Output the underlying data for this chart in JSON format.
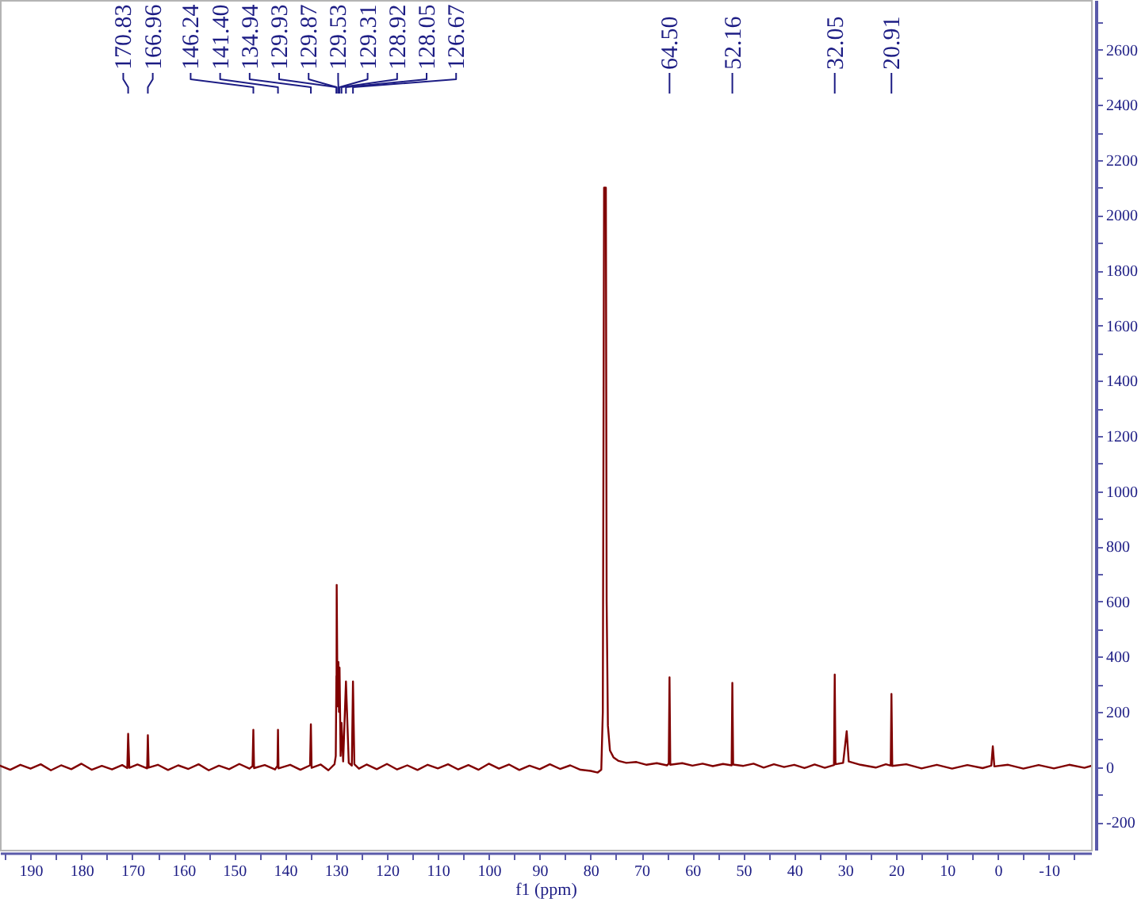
{
  "chart_data": {
    "type": "line",
    "xlabel": "f1 (ppm)",
    "x": [
      196,
      194,
      192,
      190,
      188,
      186,
      184,
      182,
      180,
      178,
      176,
      174,
      172,
      171.0,
      170.83,
      170.6,
      169,
      167.1,
      166.96,
      166.8,
      165,
      163,
      161,
      159,
      157,
      155,
      153,
      151,
      149,
      147,
      146.4,
      146.24,
      146.1,
      144,
      142,
      141.5,
      141.4,
      141.3,
      139,
      137,
      135.1,
      134.94,
      134.8,
      133,
      131.5,
      130.3,
      130.05,
      129.93,
      129.9,
      129.87,
      129.7,
      129.53,
      129.42,
      129.31,
      129.1,
      128.92,
      128.6,
      128.05,
      127.5,
      126.9,
      126.67,
      126.4,
      125.5,
      124,
      122,
      120,
      118,
      116,
      114,
      112,
      110,
      108,
      106,
      104,
      102,
      100,
      98,
      96,
      94,
      92,
      90,
      88,
      86,
      84,
      82,
      80,
      78.6,
      77.9,
      77.6,
      77.35,
      77.0,
      76.85,
      76.6,
      76.2,
      75.5,
      74.5,
      73,
      71,
      69,
      67,
      65,
      64.65,
      64.5,
      64.35,
      62,
      60,
      58,
      56,
      54,
      52.3,
      52.16,
      52.0,
      50,
      48,
      46,
      44,
      42,
      40,
      38,
      36,
      34,
      32.2,
      32.05,
      31.9,
      30.4,
      29.7,
      29.3,
      27,
      24,
      22,
      21.05,
      20.91,
      20.75,
      18,
      15,
      12,
      9,
      6,
      3,
      1.3,
      1.0,
      0.7,
      -2,
      -5,
      -8,
      -11,
      -14,
      -17,
      -18.3
    ],
    "series": [
      {
        "color": "#800000",
        "axis": "y2",
        "values": [
          5,
          -10,
          8,
          -6,
          10,
          -12,
          6,
          -8,
          12,
          -10,
          4,
          -9,
          7,
          -4,
          120,
          -3,
          9,
          -5,
          115,
          -2,
          8,
          -11,
          6,
          -7,
          10,
          -12,
          5,
          -8,
          11,
          -6,
          3,
          135,
          -4,
          7,
          -9,
          4,
          135,
          -5,
          8,
          -10,
          6,
          155,
          -3,
          9,
          -12,
          10,
          40,
          330,
          250,
          660,
          220,
          380,
          200,
          360,
          40,
          160,
          20,
          310,
          15,
          5,
          310,
          10,
          -6,
          9,
          -8,
          11,
          -9,
          6,
          -11,
          8,
          -5,
          10,
          -9,
          7,
          -10,
          12,
          -6,
          9,
          -11,
          5,
          -8,
          10,
          -7,
          6,
          -10,
          -14,
          -20,
          -10,
          200,
          2100,
          2100,
          600,
          150,
          60,
          35,
          22,
          15,
          18,
          8,
          14,
          6,
          12,
          325,
          8,
          14,
          5,
          12,
          3,
          11,
          6,
          305,
          9,
          4,
          12,
          -2,
          10,
          0,
          8,
          -4,
          9,
          -3,
          7,
          335,
          10,
          15,
          130,
          20,
          8,
          -2,
          10,
          5,
          265,
          4,
          10,
          -5,
          8,
          -6,
          7,
          -4,
          5,
          75,
          2,
          8,
          -6,
          7,
          -5,
          8,
          -3,
          4
        ]
      }
    ],
    "xlim": [
      196,
      -18.3
    ],
    "y2lim": [
      -300,
      2780
    ],
    "xticks": [
      {
        "value": 195,
        "label": null
      },
      190,
      {
        "value": 185,
        "label": null
      },
      180,
      {
        "value": 175,
        "label": null
      },
      170,
      {
        "value": 165,
        "label": null
      },
      160,
      {
        "value": 155,
        "label": null
      },
      150,
      {
        "value": 145,
        "label": null
      },
      140,
      {
        "value": 135,
        "label": null
      },
      130,
      {
        "value": 125,
        "label": null
      },
      120,
      {
        "value": 115,
        "label": null
      },
      110,
      {
        "value": 105,
        "label": null
      },
      100,
      {
        "value": 95,
        "label": null
      },
      90,
      {
        "value": 85,
        "label": null
      },
      80,
      {
        "value": 75,
        "label": null
      },
      70,
      {
        "value": 65,
        "label": null
      },
      60,
      {
        "value": 55,
        "label": null
      },
      50,
      {
        "value": 45,
        "label": null
      },
      40,
      {
        "value": 35,
        "label": null
      },
      30,
      {
        "value": 25,
        "label": null
      },
      20,
      {
        "value": 15,
        "label": null
      },
      10,
      {
        "value": 5,
        "label": null
      },
      0,
      {
        "value": -5,
        "label": null
      },
      -10,
      {
        "value": -15,
        "label": null
      }
    ],
    "y2ticks": [
      -200,
      {
        "value": -100,
        "label": null
      },
      0,
      {
        "value": 100,
        "label": null
      },
      200,
      {
        "value": 300,
        "label": null
      },
      400,
      {
        "value": 500,
        "label": null
      },
      600,
      {
        "value": 700,
        "label": null
      },
      800,
      {
        "value": 900,
        "label": null
      },
      1000,
      {
        "value": 1100,
        "label": null
      },
      1200,
      {
        "value": 1300,
        "label": null
      },
      1400,
      {
        "value": 1500,
        "label": null
      },
      1600,
      {
        "value": 1700,
        "label": null
      },
      1800,
      {
        "value": 1900,
        "label": null
      },
      2000,
      {
        "value": 2100,
        "label": null
      },
      2200,
      {
        "value": 2300,
        "label": null
      },
      2400,
      {
        "value": 2500,
        "label": null
      },
      2600,
      {
        "value": 2700,
        "label": null
      }
    ],
    "grid": false,
    "line_style": "solid",
    "annotations": [
      {
        "text": "170.83",
        "x": 170.83
      },
      {
        "text": "166.96",
        "x": 166.96
      },
      {
        "text": "146.24",
        "x": 146.24
      },
      {
        "text": "141.40",
        "x": 141.4
      },
      {
        "text": "134.94",
        "x": 134.94
      },
      {
        "text": "129.93",
        "x": 129.93
      },
      {
        "text": "129.87",
        "x": 129.87
      },
      {
        "text": "129.53",
        "x": 129.53
      },
      {
        "text": "129.31",
        "x": 129.31
      },
      {
        "text": "128.92",
        "x": 128.92
      },
      {
        "text": "128.05",
        "x": 128.05
      },
      {
        "text": "126.67",
        "x": 126.67
      },
      {
        "text": "64.50",
        "x": 64.5
      },
      {
        "text": "52.16",
        "x": 52.16
      },
      {
        "text": "32.05",
        "x": 32.05
      },
      {
        "text": "20.91",
        "x": 20.91
      }
    ]
  }
}
